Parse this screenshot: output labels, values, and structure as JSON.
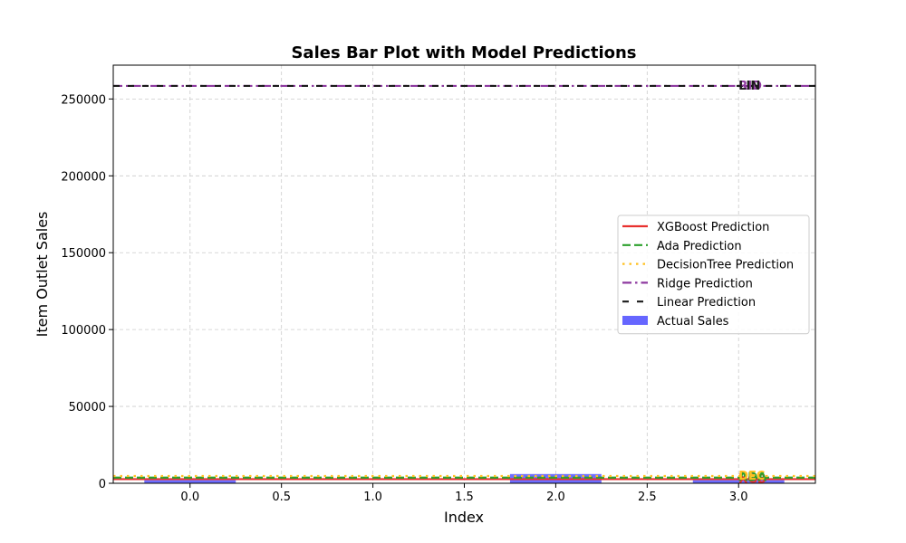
{
  "chart_data": {
    "type": "bar",
    "title": "Sales Bar Plot with Model Predictions",
    "xlabel": "Index",
    "ylabel": "Item Outlet Sales",
    "xlim": [
      -0.42,
      3.42
    ],
    "ylim": [
      0,
      272000
    ],
    "x_ticks": [
      0.0,
      0.5,
      1.0,
      1.5,
      2.0,
      2.5,
      3.0
    ],
    "x_tick_labels": [
      "0.0",
      "0.5",
      "1.0",
      "1.5",
      "2.0",
      "2.5",
      "3.0"
    ],
    "y_ticks": [
      0,
      50000,
      100000,
      150000,
      200000,
      250000
    ],
    "y_tick_labels": [
      "0",
      "50000",
      "100000",
      "150000",
      "200000",
      "250000"
    ],
    "grid": true,
    "legend_position": "center-right",
    "bars": {
      "name": "Actual Sales",
      "color": "#6666ff",
      "x": [
        0,
        2,
        3
      ],
      "values": [
        2000,
        6000,
        2000
      ],
      "width": 0.5
    },
    "lines": [
      {
        "name": "XGBoost Prediction",
        "value": 2700,
        "color": "#e8312f",
        "style": "solid",
        "label": "XGB"
      },
      {
        "name": "Ada Prediction",
        "value": 3700,
        "color": "#2ca02c",
        "style": "dashed",
        "label": "ADA"
      },
      {
        "name": "DecisionTree Prediction",
        "value": 4700,
        "color": "#ffc020",
        "style": "dotted",
        "label": "DEC"
      },
      {
        "name": "Ridge Prediction",
        "value": 258500,
        "color": "#8e3aa0",
        "style": "dashdot",
        "label": "RID"
      },
      {
        "name": "Linear Prediction",
        "value": 258500,
        "color": "#1a1a1a",
        "style": "loosedash",
        "label": "LIN"
      }
    ]
  }
}
